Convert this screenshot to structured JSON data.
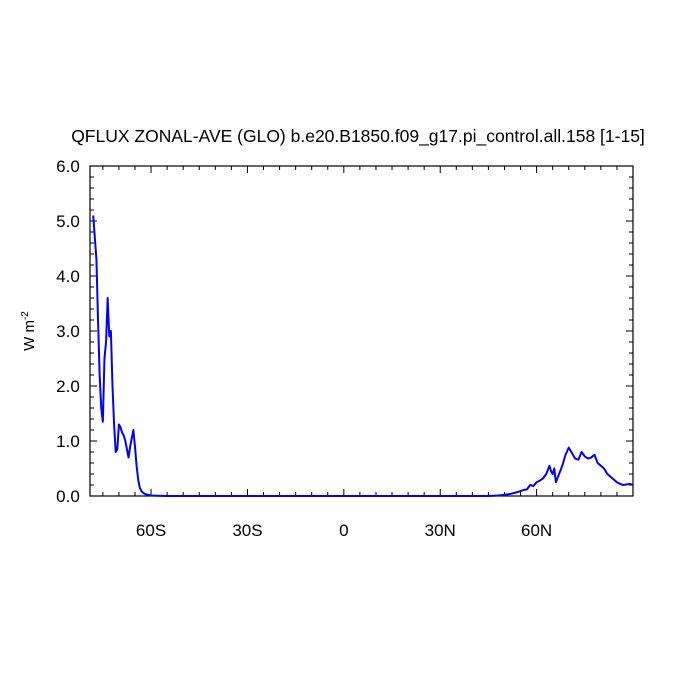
{
  "chart_data": {
    "type": "line",
    "title": "QFLUX ZONAL-AVE (GLO) b.e20.B1850.f09_g17.pi_control.all.158 [1-15]",
    "xlabel": "",
    "ylabel": "W m",
    "ylabel_sup": "-2",
    "xlim": [
      -79,
      90
    ],
    "ylim": [
      0,
      6
    ],
    "grid": false,
    "legend": "none",
    "x_ticks": [
      {
        "value": -60,
        "label": "60S"
      },
      {
        "value": -30,
        "label": "30S"
      },
      {
        "value": 0,
        "label": "0"
      },
      {
        "value": 30,
        "label": "30N"
      },
      {
        "value": 60,
        "label": "60N"
      }
    ],
    "y_ticks": [
      {
        "value": 0,
        "label": "0.0"
      },
      {
        "value": 1,
        "label": "1.0"
      },
      {
        "value": 2,
        "label": "2.0"
      },
      {
        "value": 3,
        "label": "3.0"
      },
      {
        "value": 4,
        "label": "4.0"
      },
      {
        "value": 5,
        "label": "5.0"
      },
      {
        "value": 6,
        "label": "6.0"
      }
    ],
    "series": [
      {
        "color": "#0000ff",
        "x": [
          -78,
          -77,
          -76.5,
          -76,
          -75.5,
          -75,
          -74.5,
          -74,
          -73.5,
          -73,
          -72.5,
          -72,
          -71.5,
          -71,
          -70.5,
          -70,
          -69.5,
          -69,
          -68.5,
          -68,
          -67,
          -66.5,
          -66,
          -65.5,
          -65,
          -64.5,
          -64,
          -63.5,
          -63,
          -62.5,
          -62,
          -61,
          -60,
          -58,
          -55,
          -50,
          -40,
          -30,
          -20,
          -10,
          0,
          10,
          20,
          30,
          40,
          45,
          48,
          50,
          52,
          54,
          55,
          56,
          57,
          58,
          59,
          60,
          61,
          62,
          63,
          64,
          64.5,
          65,
          65.5,
          66,
          67,
          68,
          69,
          70,
          71,
          72,
          73,
          74,
          75,
          76,
          77,
          78,
          79,
          80,
          81,
          82,
          83,
          84,
          85,
          86,
          87,
          88,
          89,
          90
        ],
        "y": [
          5.1,
          4.3,
          3.2,
          2.2,
          1.6,
          1.35,
          2.5,
          2.8,
          3.6,
          2.9,
          3.0,
          2.0,
          1.3,
          0.8,
          0.85,
          1.3,
          1.25,
          1.15,
          1.1,
          1.0,
          0.7,
          0.9,
          1.05,
          1.2,
          0.9,
          0.55,
          0.3,
          0.15,
          0.09,
          0.06,
          0.04,
          0.02,
          0.01,
          0.005,
          0.0,
          0.0,
          0.0,
          0.0,
          0.0,
          0.0,
          0.0,
          0.0,
          0.0,
          0.0,
          0.0,
          0.0,
          0.01,
          0.02,
          0.04,
          0.07,
          0.09,
          0.11,
          0.12,
          0.2,
          0.18,
          0.25,
          0.28,
          0.32,
          0.4,
          0.55,
          0.45,
          0.4,
          0.5,
          0.25,
          0.4,
          0.55,
          0.75,
          0.88,
          0.78,
          0.68,
          0.66,
          0.8,
          0.72,
          0.68,
          0.7,
          0.75,
          0.6,
          0.55,
          0.5,
          0.4,
          0.35,
          0.3,
          0.25,
          0.22,
          0.2,
          0.21,
          0.22,
          0.2
        ]
      }
    ]
  }
}
